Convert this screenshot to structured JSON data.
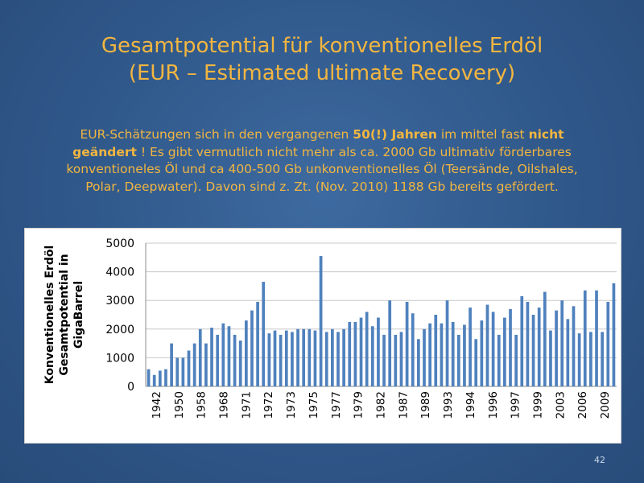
{
  "slide": {
    "title_line1": "Gesamtpotential für konventionelles Erdöl",
    "title_line2": "(EUR – Estimated ultimate Recovery)",
    "body": {
      "t1": "EUR-Schätzungen sich in den vergangenen ",
      "b1": "50(!) Jahren",
      "t2": " im mittel fast ",
      "b2": "nicht geändert",
      "t3": " ! Es gibt vermutlich nicht mehr als ca. 2000 Gb ultimativ förderbares konventioneles Öl und ca 400-500 Gb unkonventionelles Öl (Teersände, Oilshales, Polar, Deepwater). Davon sind z. Zt. (Nov. 2010) 1188 Gb bereits gefördert."
    },
    "page_number": "42",
    "accent_color": "#f2b640",
    "background_color": "#2f5789"
  },
  "chart_data": {
    "type": "bar",
    "ylabel": "Konventionelles Erdöl Gesamtpotential in GigaBarrel",
    "ylim": [
      0,
      5000
    ],
    "yticks": [
      0,
      1000,
      2000,
      3000,
      4000,
      5000
    ],
    "grid": true,
    "bar_color": "#4f81bd",
    "x_tick_labels": [
      "1942",
      "1950",
      "1958",
      "1968",
      "1971",
      "1972",
      "1973",
      "1975",
      "1977",
      "1979",
      "1982",
      "1987",
      "1989",
      "1993",
      "1994",
      "1996",
      "1997",
      "1999",
      "2003",
      "2006",
      "2009"
    ],
    "values": [
      600,
      400,
      550,
      600,
      1500,
      1000,
      1000,
      1250,
      1500,
      2000,
      1500,
      2050,
      1800,
      2200,
      2100,
      1800,
      1600,
      2300,
      2650,
      2950,
      3650,
      1850,
      1950,
      1800,
      1950,
      1900,
      2000,
      2000,
      2000,
      1950,
      4550,
      1900,
      2000,
      1900,
      2000,
      2250,
      2250,
      2400,
      2600,
      2100,
      2400,
      1800,
      3000,
      1800,
      1900,
      2950,
      2550,
      1650,
      2000,
      2200,
      2500,
      2200,
      3000,
      2250,
      1800,
      2150,
      2750,
      1650,
      2300,
      2850,
      2600,
      1800,
      2400,
      2700,
      1800,
      3150,
      2950,
      2500,
      2750,
      3300,
      1950,
      2650,
      3000,
      2350,
      2800,
      1850,
      3350,
      1900,
      3350,
      1900,
      2950,
      3600
    ]
  }
}
